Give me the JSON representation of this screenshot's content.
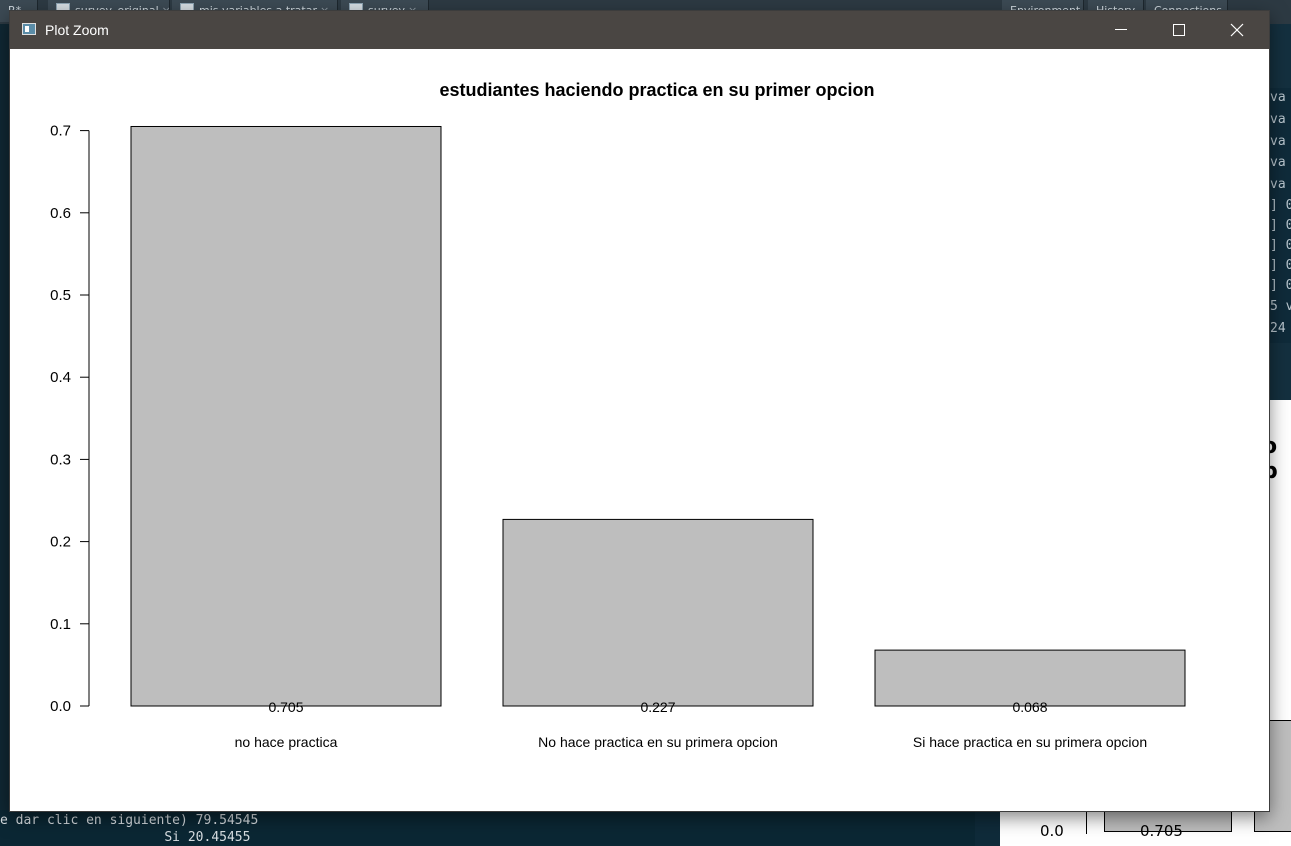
{
  "window": {
    "title": "Plot Zoom"
  },
  "background": {
    "tabs": [
      {
        "label": "R*"
      },
      {
        "label": "survey_original"
      },
      {
        "label": "mis variables a tratar"
      },
      {
        "label": "survey"
      }
    ],
    "right_tabs": [
      {
        "label": "Environment"
      },
      {
        "label": "History"
      },
      {
        "label": "Connections"
      }
    ],
    "console_lines": [
      "e dar clic en siguiente) 79.54545",
      "                     Si 20.45455"
    ],
    "env_lines": [
      "va",
      "va",
      "va",
      "va",
      "va",
      "] 0",
      "] 0",
      "] 0",
      "] 0",
      "] 0",
      "5 v",
      "24"
    ],
    "mini_plot": {
      "title_fragment": "o p",
      "y_tick": "0.0",
      "bar_label": "0.705"
    }
  },
  "chart_data": {
    "type": "bar",
    "title": "estudiantes haciendo practica en su primer opcion",
    "categories": [
      "no hace practica",
      "No hace practica en su primera opcion",
      "Si hace practica en su primera opcion"
    ],
    "values": [
      0.705,
      0.227,
      0.068
    ],
    "value_labels": [
      "0.705",
      "0.227",
      "0.068"
    ],
    "y_ticks": [
      "0.0",
      "0.1",
      "0.2",
      "0.3",
      "0.4",
      "0.5",
      "0.6",
      "0.7"
    ],
    "ylim": [
      0,
      0.7
    ],
    "xlabel": "",
    "ylabel": "",
    "grid": false,
    "bar_color": "#bebebe",
    "bar_border": "#000000"
  }
}
